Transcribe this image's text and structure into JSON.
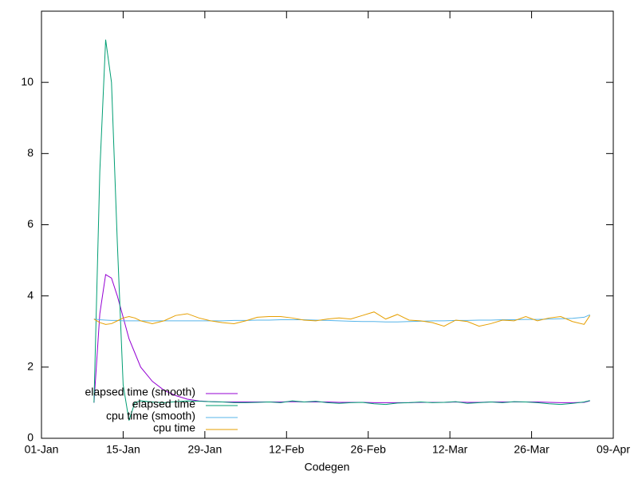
{
  "chart_data": {
    "type": "line",
    "x_label": "Codegen",
    "x": [
      9,
      10,
      11,
      12,
      13,
      14,
      15,
      16,
      17,
      19,
      21,
      23,
      25,
      27,
      29,
      31,
      33,
      35,
      37,
      39,
      41,
      43,
      45,
      47,
      49,
      51,
      53,
      55,
      57,
      59,
      61,
      63,
      65,
      67,
      69,
      71,
      73,
      75,
      77,
      79,
      81,
      83,
      85,
      87,
      89,
      91,
      93,
      94
    ],
    "series": [
      {
        "name": "elapsed time (smooth)",
        "color": "#9400d3",
        "values": [
          1.0,
          3.5,
          4.6,
          4.5,
          4.0,
          3.4,
          2.8,
          2.4,
          2.0,
          1.6,
          1.35,
          1.2,
          1.1,
          1.05,
          1.03,
          1.02,
          1.02,
          1.02,
          1.02,
          1.02,
          1.02,
          1.03,
          1.02,
          1.02,
          1.02,
          1.01,
          1.01,
          1.01,
          1.0,
          1.0,
          1.0,
          1.0,
          1.01,
          1.01,
          1.01,
          1.02,
          1.01,
          1.01,
          1.02,
          1.02,
          1.02,
          1.02,
          1.02,
          1.01,
          1.0,
          1.0,
          1.01,
          1.05
        ]
      },
      {
        "name": "elapsed time",
        "color": "#009e73",
        "values": [
          1.0,
          7.5,
          11.2,
          10.0,
          5.5,
          1.5,
          0.5,
          1.0,
          1.05,
          1.02,
          1.0,
          1.03,
          1.05,
          1.04,
          1.03,
          1.02,
          1.0,
          1.0,
          1.01,
          1.02,
          1.0,
          1.05,
          1.02,
          1.04,
          1.0,
          0.98,
          1.0,
          1.01,
          0.97,
          0.95,
          0.99,
          1.0,
          1.02,
          1.0,
          1.01,
          1.03,
          0.98,
          1.0,
          1.02,
          1.0,
          1.03,
          1.02,
          1.0,
          0.97,
          0.95,
          0.98,
          1.02,
          1.06
        ]
      },
      {
        "name": "cpu time (smooth)",
        "color": "#56b4e9",
        "values": [
          3.35,
          3.33,
          3.32,
          3.31,
          3.31,
          3.3,
          3.3,
          3.3,
          3.3,
          3.3,
          3.3,
          3.3,
          3.3,
          3.3,
          3.3,
          3.3,
          3.31,
          3.31,
          3.32,
          3.32,
          3.33,
          3.33,
          3.33,
          3.32,
          3.31,
          3.3,
          3.29,
          3.28,
          3.28,
          3.27,
          3.27,
          3.28,
          3.29,
          3.3,
          3.3,
          3.31,
          3.31,
          3.32,
          3.32,
          3.33,
          3.33,
          3.34,
          3.34,
          3.35,
          3.36,
          3.37,
          3.4,
          3.47
        ]
      },
      {
        "name": "cpu time",
        "color": "#e69f00",
        "values": [
          3.35,
          3.25,
          3.2,
          3.22,
          3.3,
          3.38,
          3.42,
          3.38,
          3.3,
          3.22,
          3.3,
          3.45,
          3.5,
          3.38,
          3.3,
          3.25,
          3.22,
          3.3,
          3.4,
          3.42,
          3.42,
          3.38,
          3.32,
          3.3,
          3.35,
          3.38,
          3.35,
          3.45,
          3.55,
          3.35,
          3.48,
          3.32,
          3.3,
          3.25,
          3.15,
          3.32,
          3.28,
          3.15,
          3.22,
          3.32,
          3.3,
          3.42,
          3.3,
          3.38,
          3.42,
          3.28,
          3.2,
          3.45
        ]
      }
    ],
    "xlim": [
      0,
      98
    ],
    "xticks": [
      {
        "value": 0,
        "label": "01-Jan"
      },
      {
        "value": 14,
        "label": "15-Jan"
      },
      {
        "value": 28,
        "label": "29-Jan"
      },
      {
        "value": 42,
        "label": "12-Feb"
      },
      {
        "value": 56,
        "label": "26-Feb"
      },
      {
        "value": 70,
        "label": "12-Mar"
      },
      {
        "value": 84,
        "label": "26-Mar"
      },
      {
        "value": 98,
        "label": "09-Apr"
      }
    ],
    "ylim": [
      0,
      12
    ],
    "yticks": [
      0,
      2,
      4,
      6,
      8,
      10
    ],
    "legend": "bottom left"
  }
}
